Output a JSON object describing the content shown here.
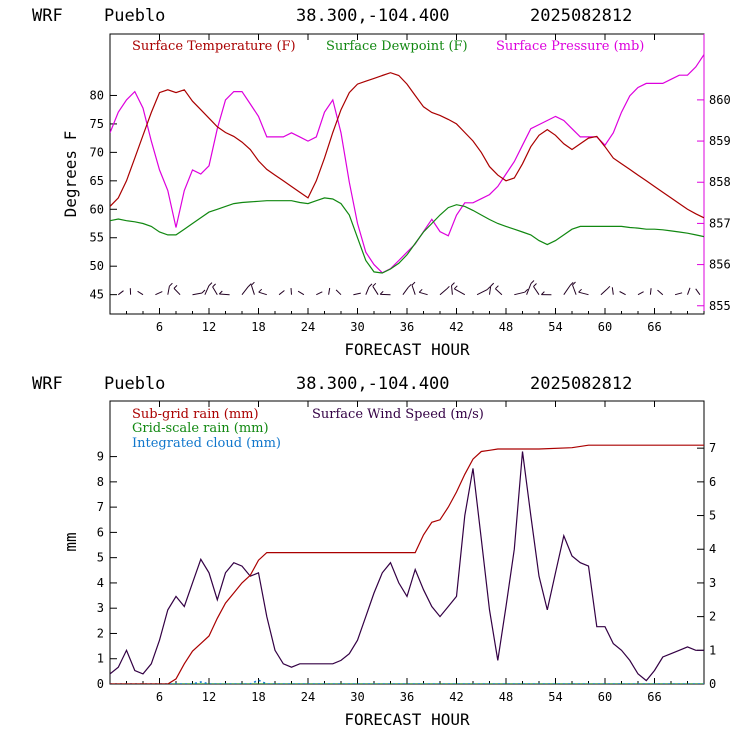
{
  "chart_data": [
    {
      "type": "line",
      "header": {
        "model": "WRF",
        "location": "Pueblo",
        "coords": "38.300,-104.400",
        "run": "2025082812"
      },
      "xlabel": "FORECAST HOUR",
      "ylabel": "Degrees F",
      "xlim": [
        0,
        72
      ],
      "xticks": [
        6,
        12,
        18,
        24,
        30,
        36,
        42,
        48,
        54,
        60,
        66
      ],
      "ylim_left": [
        41.6,
        90.8
      ],
      "yticks_left": [
        45,
        50,
        55,
        60,
        65,
        70,
        75,
        80
      ],
      "ylim_right": [
        854.8,
        861.6
      ],
      "yticks_right": [
        855,
        856,
        857,
        858,
        859,
        860
      ],
      "colors": {
        "temperature": "#aa0000",
        "dewpoint": "#118811",
        "pressure": "#dd00dd",
        "wind_barbs": "#220022"
      },
      "series": [
        {
          "name": "Surface Temperature (F)",
          "axis": "left",
          "color": "#aa0000",
          "x": [
            0,
            1,
            2,
            3,
            4,
            5,
            6,
            7,
            8,
            9,
            10,
            11,
            12,
            13,
            14,
            15,
            16,
            17,
            18,
            19,
            20,
            21,
            22,
            23,
            24,
            25,
            26,
            27,
            28,
            29,
            30,
            31,
            32,
            33,
            34,
            35,
            36,
            37,
            38,
            39,
            40,
            41,
            42,
            43,
            44,
            45,
            46,
            47,
            48,
            49,
            50,
            51,
            52,
            53,
            54,
            55,
            56,
            57,
            58,
            59,
            60,
            61,
            62,
            63,
            64,
            65,
            66,
            67,
            68,
            69,
            70,
            71,
            72
          ],
          "values": [
            60.5,
            62,
            65,
            69,
            73,
            77,
            80.5,
            81,
            80.5,
            81,
            79,
            77.5,
            76,
            74.5,
            73.5,
            72.8,
            71.8,
            70.5,
            68.5,
            67,
            66,
            65,
            64,
            63,
            62,
            65,
            69,
            73.5,
            77.5,
            80.5,
            82,
            82.5,
            83,
            83.5,
            84,
            83.5,
            82,
            80,
            78,
            77,
            76.5,
            75.8,
            75,
            73.5,
            72,
            70,
            67.5,
            66,
            65,
            65.5,
            68,
            71,
            73,
            74,
            73,
            71.5,
            70.5,
            71.5,
            72.5,
            72.8,
            71,
            69,
            68,
            67,
            66,
            65,
            64,
            63,
            62,
            61,
            60,
            59.2,
            58.5
          ]
        },
        {
          "name": "Surface Dewpoint (F)",
          "axis": "left",
          "color": "#118811",
          "x": [
            0,
            1,
            2,
            3,
            4,
            5,
            6,
            7,
            8,
            9,
            10,
            11,
            12,
            13,
            14,
            15,
            16,
            17,
            18,
            19,
            20,
            21,
            22,
            23,
            24,
            25,
            26,
            27,
            28,
            29,
            30,
            31,
            32,
            33,
            34,
            35,
            36,
            37,
            38,
            39,
            40,
            41,
            42,
            43,
            44,
            45,
            46,
            47,
            48,
            49,
            50,
            51,
            52,
            53,
            54,
            55,
            56,
            57,
            58,
            59,
            60,
            61,
            62,
            63,
            64,
            65,
            66,
            67,
            68,
            69,
            70,
            71,
            72
          ],
          "values": [
            58,
            58.3,
            58,
            57.8,
            57.5,
            57,
            56,
            55.5,
            55.5,
            56.5,
            57.5,
            58.5,
            59.5,
            60,
            60.5,
            61,
            61.2,
            61.3,
            61.4,
            61.5,
            61.5,
            61.5,
            61.5,
            61.2,
            61,
            61.5,
            62,
            61.8,
            61,
            59,
            55,
            51,
            49,
            48.8,
            49.5,
            50.5,
            52,
            54,
            56,
            57.5,
            59,
            60.3,
            60.8,
            60.5,
            59.8,
            59,
            58.2,
            57.5,
            57,
            56.5,
            56,
            55.5,
            54.5,
            53.8,
            54.5,
            55.5,
            56.5,
            57,
            57,
            57,
            57,
            57,
            57,
            56.8,
            56.7,
            56.5,
            56.5,
            56.4,
            56.2,
            56,
            55.8,
            55.5,
            55.2
          ]
        },
        {
          "name": "Surface Pressure (mb)",
          "axis": "right",
          "color": "#dd00dd",
          "x": [
            0,
            1,
            2,
            3,
            4,
            5,
            6,
            7,
            8,
            9,
            10,
            11,
            12,
            13,
            14,
            15,
            16,
            17,
            18,
            19,
            20,
            21,
            22,
            23,
            24,
            25,
            26,
            27,
            28,
            29,
            30,
            31,
            32,
            33,
            34,
            35,
            36,
            37,
            38,
            39,
            40,
            41,
            42,
            43,
            44,
            45,
            46,
            47,
            48,
            49,
            50,
            51,
            52,
            53,
            54,
            55,
            56,
            57,
            58,
            59,
            60,
            61,
            62,
            63,
            64,
            65,
            66,
            67,
            68,
            69,
            70,
            71,
            72
          ],
          "values": [
            859.2,
            859.7,
            860,
            860.2,
            859.8,
            859,
            858.3,
            857.8,
            856.9,
            857.8,
            858.3,
            858.2,
            858.4,
            859.3,
            860,
            860.2,
            860.2,
            859.9,
            859.6,
            859.1,
            859.1,
            859.1,
            859.2,
            859.1,
            859,
            859.1,
            859.7,
            860,
            859.2,
            858,
            857,
            856.3,
            856,
            855.8,
            855.9,
            856.1,
            856.3,
            856.5,
            856.8,
            857.1,
            856.8,
            856.7,
            857.2,
            857.5,
            857.5,
            857.6,
            857.7,
            857.9,
            858.2,
            858.5,
            858.9,
            859.3,
            859.4,
            859.5,
            859.6,
            859.5,
            859.3,
            859.1,
            859.1,
            859.1,
            858.9,
            859.2,
            859.7,
            860.1,
            860.3,
            860.4,
            860.4,
            860.4,
            860.5,
            860.6,
            860.6,
            860.8,
            861.1
          ]
        }
      ],
      "wind_barb_row_value": 45
    },
    {
      "type": "line",
      "header": {
        "model": "WRF",
        "location": "Pueblo",
        "coords": "38.300,-104.400",
        "run": "2025082812"
      },
      "xlabel": "FORECAST HOUR",
      "ylabel": "mm",
      "xlim": [
        0,
        72
      ],
      "xticks": [
        6,
        12,
        18,
        24,
        30,
        36,
        42,
        48,
        54,
        60,
        66
      ],
      "ylim_left": [
        0,
        11.2
      ],
      "yticks_left": [
        0,
        1,
        2,
        3,
        4,
        5,
        6,
        7,
        8,
        9
      ],
      "ylim_right": [
        0,
        8.4
      ],
      "yticks_right": [
        0,
        1,
        2,
        3,
        4,
        5,
        6,
        7
      ],
      "series": [
        {
          "name": "Sub-grid rain (mm)",
          "axis": "left",
          "color": "#aa0000",
          "x": [
            0,
            6,
            7,
            8,
            9,
            10,
            11,
            12,
            13,
            14,
            15,
            16,
            17,
            18,
            19,
            20,
            36,
            37,
            38,
            39,
            40,
            41,
            42,
            43,
            44,
            45,
            46,
            47,
            48,
            49,
            50,
            52,
            56,
            58,
            72
          ],
          "values": [
            0,
            0,
            0,
            0.2,
            0.8,
            1.3,
            1.6,
            1.9,
            2.6,
            3.2,
            3.6,
            4,
            4.3,
            4.9,
            5.2,
            5.2,
            5.2,
            5.2,
            5.9,
            6.4,
            6.5,
            7,
            7.6,
            8.3,
            8.9,
            9.2,
            9.25,
            9.3,
            9.3,
            9.3,
            9.3,
            9.3,
            9.35,
            9.45,
            9.45
          ]
        },
        {
          "name": "Grid-scale rain (mm)",
          "axis": "left",
          "color": "#118811",
          "x": [
            0,
            72
          ],
          "values": [
            0,
            0
          ]
        },
        {
          "name": "Integrated cloud (mm)",
          "axis": "left",
          "color": "#1177cc",
          "x": [
            0,
            5,
            10,
            11,
            12,
            17,
            18,
            19,
            24,
            30,
            36,
            42,
            48,
            54,
            60,
            66,
            72
          ],
          "values": [
            0,
            0,
            0,
            0.08,
            0,
            0,
            0.15,
            0,
            0,
            0,
            0,
            0,
            0,
            0,
            0,
            0,
            0
          ]
        },
        {
          "name": "Surface Wind Speed (m/s)",
          "axis": "right",
          "color": "#330044",
          "x": [
            0,
            1,
            2,
            3,
            4,
            5,
            6,
            7,
            8,
            9,
            10,
            11,
            12,
            13,
            14,
            15,
            16,
            17,
            18,
            19,
            20,
            21,
            22,
            23,
            24,
            25,
            26,
            27,
            28,
            29,
            30,
            31,
            32,
            33,
            34,
            35,
            36,
            37,
            38,
            39,
            40,
            41,
            42,
            43,
            44,
            45,
            46,
            47,
            48,
            49,
            50,
            51,
            52,
            53,
            54,
            55,
            56,
            57,
            58,
            59,
            60,
            61,
            62,
            63,
            64,
            65,
            66,
            67,
            68,
            69,
            70,
            71,
            72
          ],
          "values": [
            0.3,
            0.5,
            1,
            0.4,
            0.3,
            0.6,
            1.3,
            2.2,
            2.6,
            2.3,
            3,
            3.7,
            3.3,
            2.5,
            3.3,
            3.6,
            3.5,
            3.2,
            3.3,
            2,
            1,
            0.6,
            0.5,
            0.6,
            0.6,
            0.6,
            0.6,
            0.6,
            0.7,
            0.9,
            1.3,
            2,
            2.7,
            3.3,
            3.6,
            3,
            2.6,
            3.4,
            2.8,
            2.3,
            2,
            2.3,
            2.6,
            5,
            6.4,
            4.3,
            2.2,
            0.7,
            2.3,
            4,
            6.9,
            5,
            3.2,
            2.2,
            3.3,
            4.4,
            3.8,
            3.6,
            3.5,
            1.7,
            1.7,
            1.2,
            1,
            0.7,
            0.3,
            0.1,
            0.4,
            0.8,
            0.9,
            1,
            1.1,
            1,
            1
          ]
        }
      ]
    }
  ]
}
